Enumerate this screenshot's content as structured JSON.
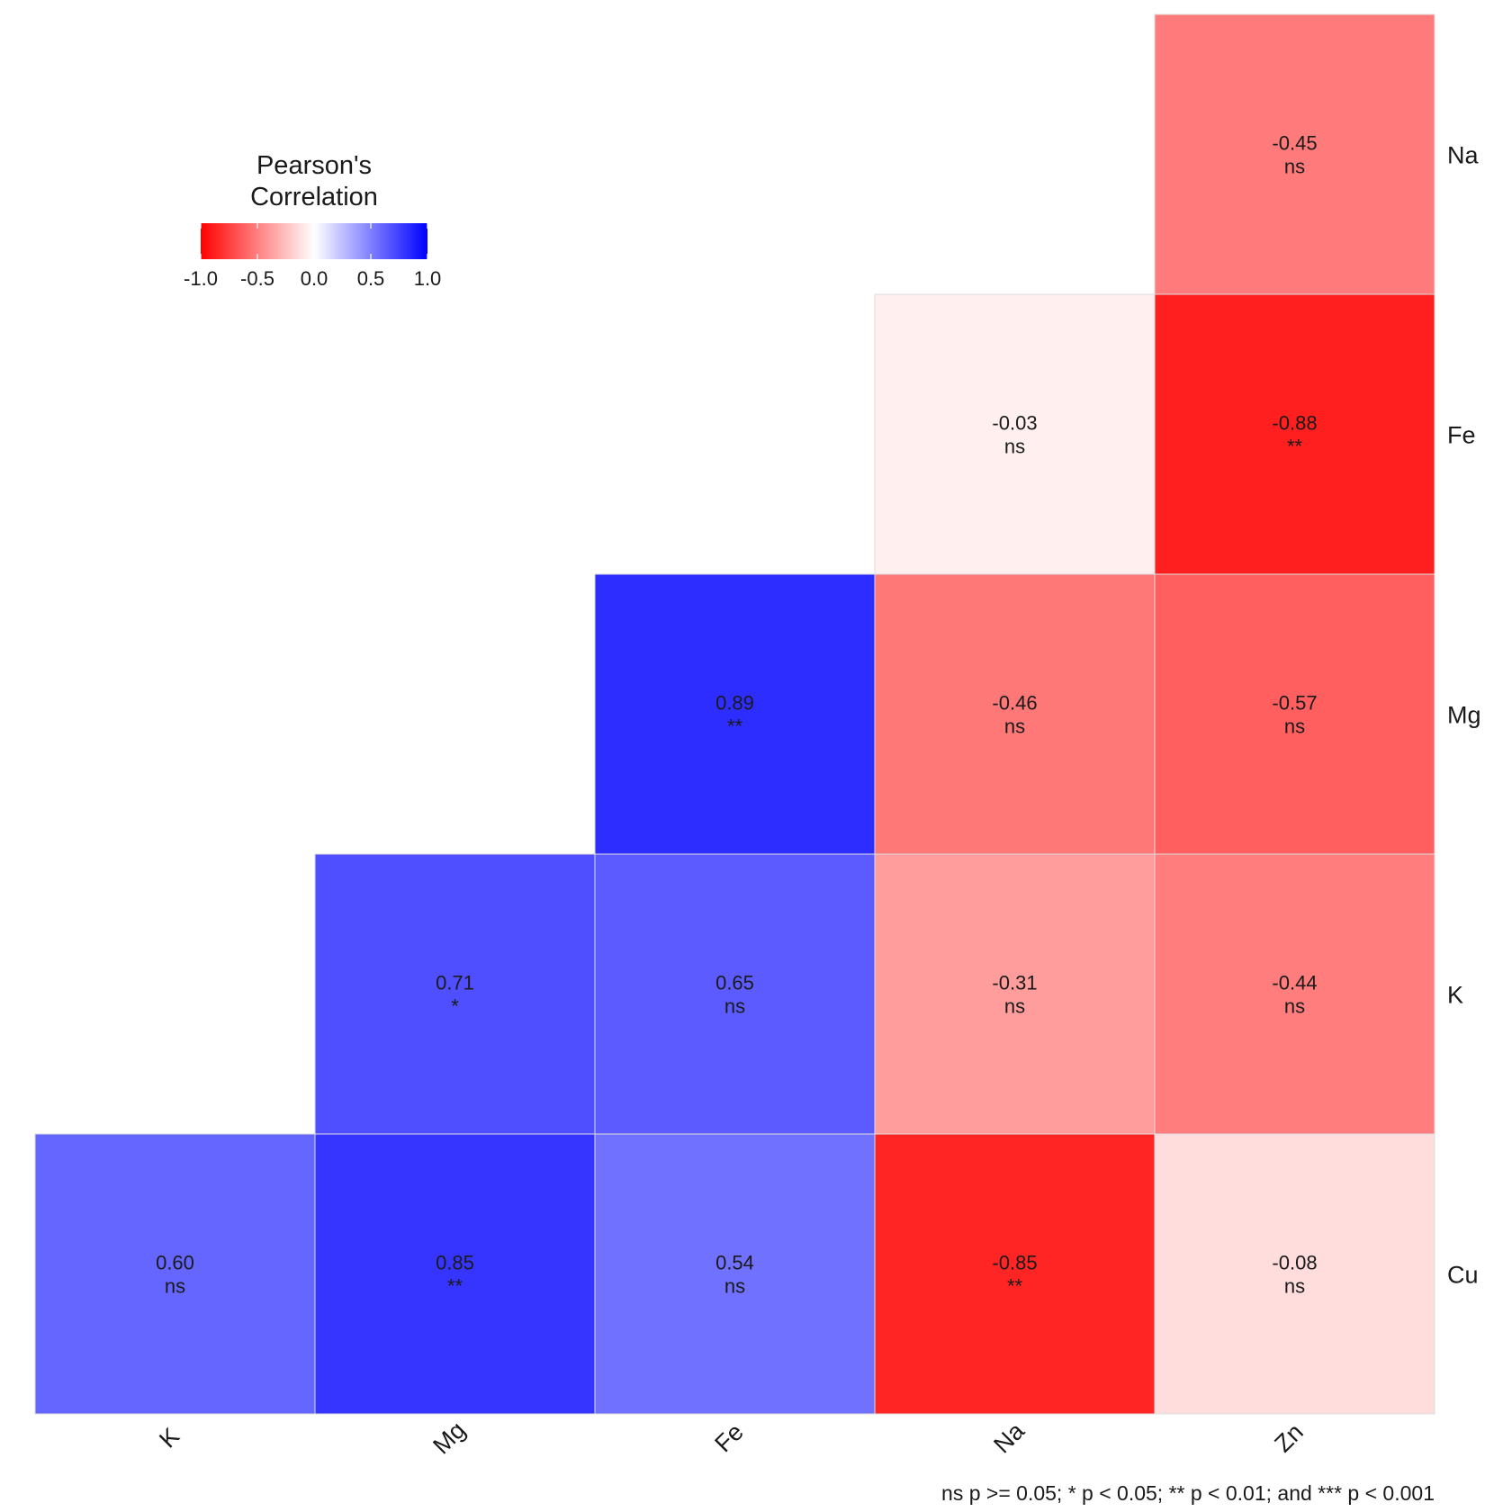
{
  "chart_data": {
    "type": "heatmap",
    "title": "",
    "x_categories": [
      "K",
      "Mg",
      "Fe",
      "Na",
      "Zn"
    ],
    "y_categories": [
      "Na",
      "Fe",
      "Mg",
      "K",
      "Cu"
    ],
    "cells": [
      {
        "x": "Zn",
        "y": "Na",
        "value": -0.45,
        "label": "-0.45",
        "sig": "ns"
      },
      {
        "x": "Na",
        "y": "Fe",
        "value": -0.03,
        "label": "-0.03",
        "sig": "ns"
      },
      {
        "x": "Zn",
        "y": "Fe",
        "value": -0.88,
        "label": "-0.88",
        "sig": "**"
      },
      {
        "x": "Fe",
        "y": "Mg",
        "value": 0.89,
        "label": "0.89",
        "sig": "**"
      },
      {
        "x": "Na",
        "y": "Mg",
        "value": -0.46,
        "label": "-0.46",
        "sig": "ns"
      },
      {
        "x": "Zn",
        "y": "Mg",
        "value": -0.57,
        "label": "-0.57",
        "sig": "ns"
      },
      {
        "x": "Mg",
        "y": "K",
        "value": 0.71,
        "label": "0.71",
        "sig": "*"
      },
      {
        "x": "Fe",
        "y": "K",
        "value": 0.65,
        "label": "0.65",
        "sig": "ns"
      },
      {
        "x": "Na",
        "y": "K",
        "value": -0.31,
        "label": "-0.31",
        "sig": "ns"
      },
      {
        "x": "Zn",
        "y": "K",
        "value": -0.44,
        "label": "-0.44",
        "sig": "ns"
      },
      {
        "x": "K",
        "y": "Cu",
        "value": 0.6,
        "label": "0.60",
        "sig": "ns"
      },
      {
        "x": "Mg",
        "y": "Cu",
        "value": 0.85,
        "label": "0.85",
        "sig": "**"
      },
      {
        "x": "Fe",
        "y": "Cu",
        "value": 0.54,
        "label": "0.54",
        "sig": "ns"
      },
      {
        "x": "Na",
        "y": "Cu",
        "value": -0.85,
        "label": "-0.85",
        "sig": "**"
      },
      {
        "x": "Zn",
        "y": "Cu",
        "value": -0.08,
        "label": "-0.08",
        "sig": "ns"
      }
    ],
    "legend": {
      "title_lines": [
        "Pearson's",
        "Correlation"
      ],
      "position": "top-left",
      "ticks": [
        "-1.0",
        "-0.5",
        "0.0",
        "0.5",
        "1.0"
      ],
      "range": [
        -1,
        1
      ],
      "colors": {
        "low": "#ff0000",
        "mid": "#ffffff",
        "high": "#0000ff"
      }
    },
    "footnote": "ns p >= 0.05; * p < 0.05; ** p < 0.01; and *** p < 0.001"
  }
}
